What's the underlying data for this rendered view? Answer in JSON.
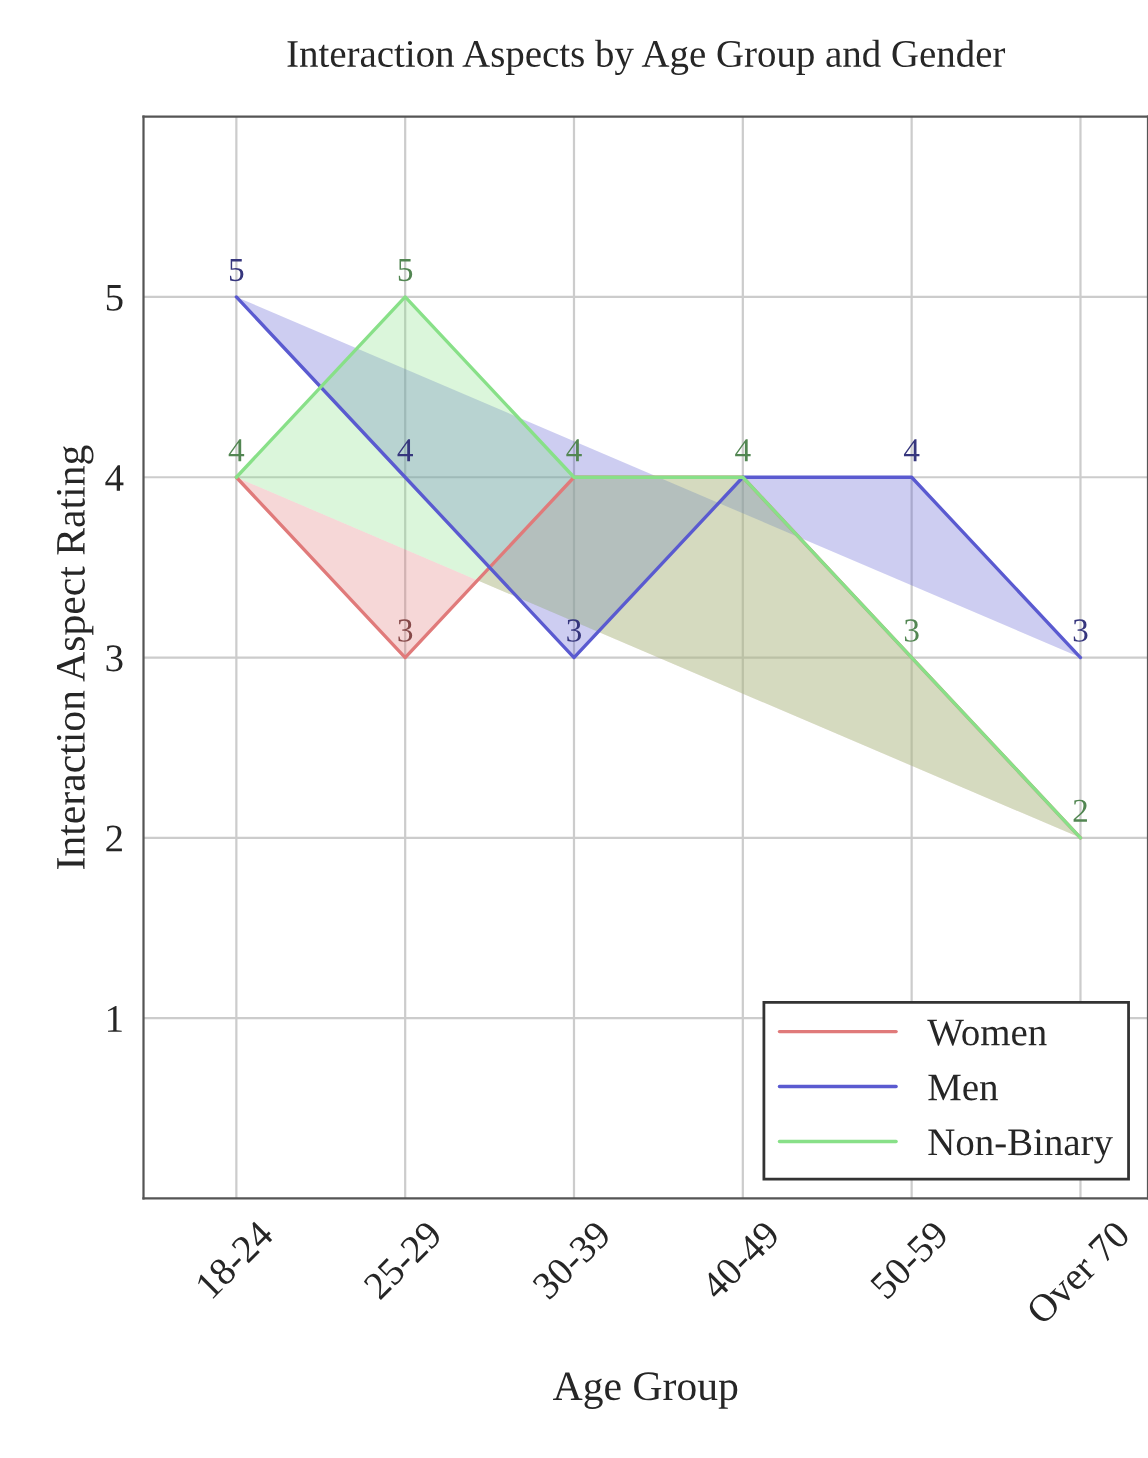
{
  "chart_data": {
    "type": "area",
    "title": "Interaction Aspects by Age Group and Gender",
    "xlabel": "Age Group",
    "ylabel": "Interaction Aspect Rating",
    "categories": [
      "18-24",
      "25-29",
      "30-39",
      "40-49",
      "50-59",
      "Over 70"
    ],
    "series": [
      {
        "name": "Women",
        "color": "#e07a7a",
        "values": [
          4,
          3,
          4,
          4,
          3,
          2
        ],
        "value_labels": [
          null,
          "3",
          null,
          null,
          null,
          null
        ]
      },
      {
        "name": "Men",
        "color": "#5a5ad0",
        "values": [
          5,
          4,
          3,
          4,
          4,
          3
        ],
        "value_labels": [
          "5",
          "4",
          "3",
          null,
          "4",
          "3"
        ]
      },
      {
        "name": "Non-Binary",
        "color": "#88e088",
        "values": [
          4,
          5,
          4,
          4,
          3,
          2
        ],
        "value_labels": [
          "4",
          "5",
          "4",
          "4",
          "3",
          "2"
        ]
      }
    ],
    "ylim": [
      0,
      6
    ],
    "yticks": [
      1,
      2,
      3,
      4,
      5
    ],
    "grid": true,
    "legend": "bottom right"
  }
}
